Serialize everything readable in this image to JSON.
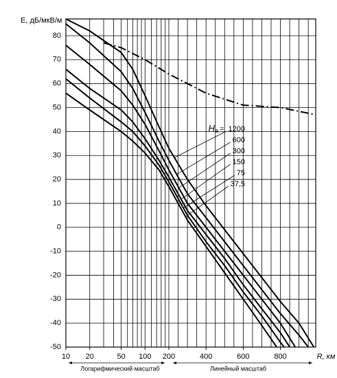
{
  "chart_data": {
    "type": "line",
    "y_label": "E, дБ/мкВ/м",
    "x_label": "R, км",
    "x_scale": "log-linear",
    "log_part_label": "Логарифмический масштаб",
    "linear_part_label": "Линейный масштаб",
    "legend_symbol": "H",
    "legend_symbol_sub": "a",
    "legend_equals": "=",
    "xlim": [
      10,
      990
    ],
    "ylim": [
      -50,
      87
    ],
    "xticks": [
      10,
      20,
      50,
      100,
      200,
      400,
      600,
      800
    ],
    "xgrid": [
      10,
      20,
      30,
      40,
      50,
      60,
      70,
      80,
      90,
      100,
      120,
      140,
      160,
      180,
      200,
      250,
      300,
      350,
      400,
      450,
      500,
      550,
      600,
      650,
      700,
      750,
      800,
      850,
      900,
      950
    ],
    "yticks": [
      80,
      70,
      60,
      50,
      40,
      30,
      20,
      10,
      0,
      -10,
      -20,
      -30,
      -40,
      -50
    ],
    "grid": true,
    "series": [
      {
        "name": "1200",
        "color": "#000000",
        "x": [
          10,
          20,
          50,
          70,
          100,
          150,
          200,
          300,
          400,
          500,
          600,
          700,
          800,
          900,
          980
        ],
        "values": [
          87,
          82,
          73,
          66,
          55,
          42,
          33,
          20,
          9,
          -1,
          -11,
          -21,
          -31,
          -40,
          -50
        ]
      },
      {
        "name": "600",
        "color": "#000000",
        "x": [
          10,
          20,
          50,
          70,
          100,
          150,
          200,
          300,
          400,
          500,
          600,
          700,
          800,
          900,
          950
        ],
        "values": [
          85,
          77,
          65,
          58,
          48,
          36,
          28,
          14,
          4,
          -6,
          -16,
          -26,
          -36,
          -45,
          -50
        ]
      },
      {
        "name": "300",
        "color": "#000000",
        "x": [
          10,
          20,
          50,
          70,
          100,
          150,
          200,
          300,
          400,
          500,
          600,
          700,
          800,
          880
        ],
        "values": [
          76,
          68,
          57,
          51,
          43,
          32,
          24,
          10,
          0,
          -10,
          -20,
          -30,
          -40,
          -50
        ]
      },
      {
        "name": "150",
        "color": "#000000",
        "x": [
          10,
          20,
          50,
          70,
          100,
          150,
          200,
          300,
          400,
          500,
          600,
          700,
          800,
          850
        ],
        "values": [
          66,
          58,
          49,
          44,
          37,
          28,
          21,
          7,
          -3,
          -13,
          -24,
          -34,
          -44,
          -50
        ]
      },
      {
        "name": "75",
        "color": "#000000",
        "x": [
          10,
          20,
          50,
          70,
          100,
          150,
          200,
          300,
          400,
          500,
          600,
          700,
          800,
          820
        ],
        "values": [
          62,
          54,
          44,
          40,
          34,
          26,
          19,
          5,
          -6,
          -16,
          -27,
          -37,
          -48,
          -50
        ]
      },
      {
        "name": "37,5",
        "color": "#000000",
        "x": [
          10,
          20,
          50,
          70,
          100,
          150,
          200,
          300,
          400,
          500,
          600,
          700,
          780
        ],
        "values": [
          56,
          49,
          40,
          36,
          31,
          24,
          17,
          3,
          -8,
          -19,
          -30,
          -41,
          -50
        ]
      }
    ],
    "reference_line": {
      "style": "dash-dot",
      "color": "#000000",
      "x": [
        30,
        50,
        100,
        200,
        400,
        600,
        800,
        990
      ],
      "values": [
        77,
        75,
        70,
        64,
        56,
        51,
        50,
        47
      ]
    }
  }
}
